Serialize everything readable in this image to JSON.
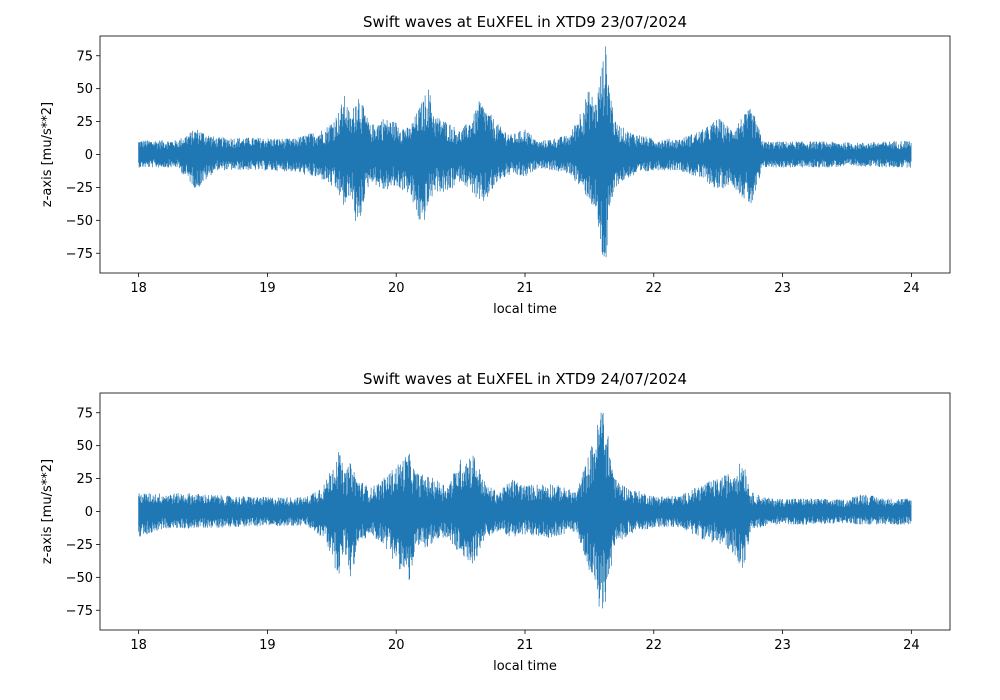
{
  "chart_data": [
    {
      "type": "line",
      "title": "Swift waves at EuXFEL in XTD9 23/07/2024",
      "xlabel": "local time",
      "ylabel": "z-axis [mu/s**2]",
      "xlim": [
        17.7,
        24.3
      ],
      "ylim": [
        -90,
        90
      ],
      "xticks": [
        18,
        19,
        20,
        21,
        22,
        23,
        24
      ],
      "yticks": [
        -75,
        -50,
        -25,
        0,
        25,
        50,
        75
      ],
      "grid": false,
      "color": "#1f77b4",
      "series": [
        {
          "envelope": {
            "x": [
              18.0,
              18.3,
              18.45,
              18.6,
              18.9,
              19.2,
              19.45,
              19.55,
              19.6,
              19.65,
              19.7,
              19.75,
              19.8,
              19.9,
              20.0,
              20.1,
              20.2,
              20.25,
              20.3,
              20.4,
              20.5,
              20.6,
              20.65,
              20.7,
              20.8,
              20.9,
              21.0,
              21.1,
              21.2,
              21.35,
              21.5,
              21.55,
              21.6,
              21.63,
              21.65,
              21.7,
              21.8,
              21.9,
              22.0,
              22.2,
              22.4,
              22.5,
              22.6,
              22.75,
              22.78,
              22.85,
              23.0,
              23.3,
              23.6,
              23.8,
              24.0
            ],
            "upper": [
              11,
              11,
              20,
              13,
              13,
              12,
              20,
              32,
              45,
              28,
              50,
              35,
              22,
              28,
              25,
              20,
              40,
              52,
              30,
              25,
              18,
              30,
              42,
              35,
              22,
              15,
              20,
              10,
              12,
              15,
              50,
              40,
              70,
              85,
              60,
              25,
              18,
              15,
              12,
              12,
              20,
              28,
              20,
              35,
              30,
              10,
              10,
              10,
              9,
              10,
              11
            ],
            "lower": [
              -10,
              -10,
              -27,
              -12,
              -12,
              -13,
              -20,
              -30,
              -42,
              -30,
              -62,
              -35,
              -20,
              -28,
              -25,
              -30,
              -58,
              -40,
              -28,
              -30,
              -20,
              -30,
              -40,
              -35,
              -20,
              -15,
              -18,
              -10,
              -12,
              -15,
              -35,
              -45,
              -80,
              -85,
              -55,
              -25,
              -18,
              -15,
              -12,
              -12,
              -20,
              -28,
              -22,
              -40,
              -35,
              -10,
              -10,
              -10,
              -9,
              -10,
              -10
            ]
          }
        }
      ]
    },
    {
      "type": "line",
      "title": "Swift waves at EuXFEL in XTD9 24/07/2024",
      "xlabel": "local time",
      "ylabel": "z-axis [mu/s**2]",
      "xlim": [
        17.7,
        24.3
      ],
      "ylim": [
        -90,
        90
      ],
      "xticks": [
        18,
        19,
        20,
        21,
        22,
        23,
        24
      ],
      "yticks": [
        -75,
        -50,
        -25,
        0,
        25,
        50,
        75
      ],
      "grid": false,
      "color": "#1f77b4",
      "series": [
        {
          "envelope": {
            "x": [
              18.0,
              18.2,
              18.4,
              18.7,
              19.0,
              19.3,
              19.45,
              19.55,
              19.6,
              19.65,
              19.7,
              19.8,
              19.9,
              20.0,
              20.1,
              20.15,
              20.3,
              20.4,
              20.5,
              20.6,
              20.7,
              20.8,
              20.9,
              21.0,
              21.2,
              21.4,
              21.5,
              21.55,
              21.6,
              21.65,
              21.7,
              21.8,
              21.9,
              22.0,
              22.2,
              22.4,
              22.5,
              22.6,
              22.7,
              22.75,
              22.9,
              23.2,
              23.5,
              23.6,
              23.8,
              24.0
            ],
            "upper": [
              14,
              14,
              14,
              12,
              11,
              11,
              22,
              48,
              30,
              38,
              25,
              18,
              25,
              35,
              45,
              30,
              25,
              20,
              40,
              45,
              20,
              15,
              25,
              20,
              22,
              15,
              45,
              60,
              85,
              55,
              25,
              18,
              15,
              12,
              12,
              22,
              25,
              30,
              40,
              15,
              10,
              10,
              9,
              14,
              10,
              10
            ],
            "lower": [
              -20,
              -13,
              -13,
              -12,
              -11,
              -11,
              -22,
              -50,
              -30,
              -55,
              -25,
              -18,
              -25,
              -40,
              -55,
              -30,
              -25,
              -20,
              -35,
              -40,
              -20,
              -15,
              -20,
              -18,
              -20,
              -15,
              -45,
              -60,
              -87,
              -55,
              -25,
              -18,
              -15,
              -12,
              -12,
              -22,
              -25,
              -30,
              -45,
              -15,
              -10,
              -10,
              -9,
              -10,
              -10,
              -10
            ]
          }
        }
      ]
    }
  ]
}
